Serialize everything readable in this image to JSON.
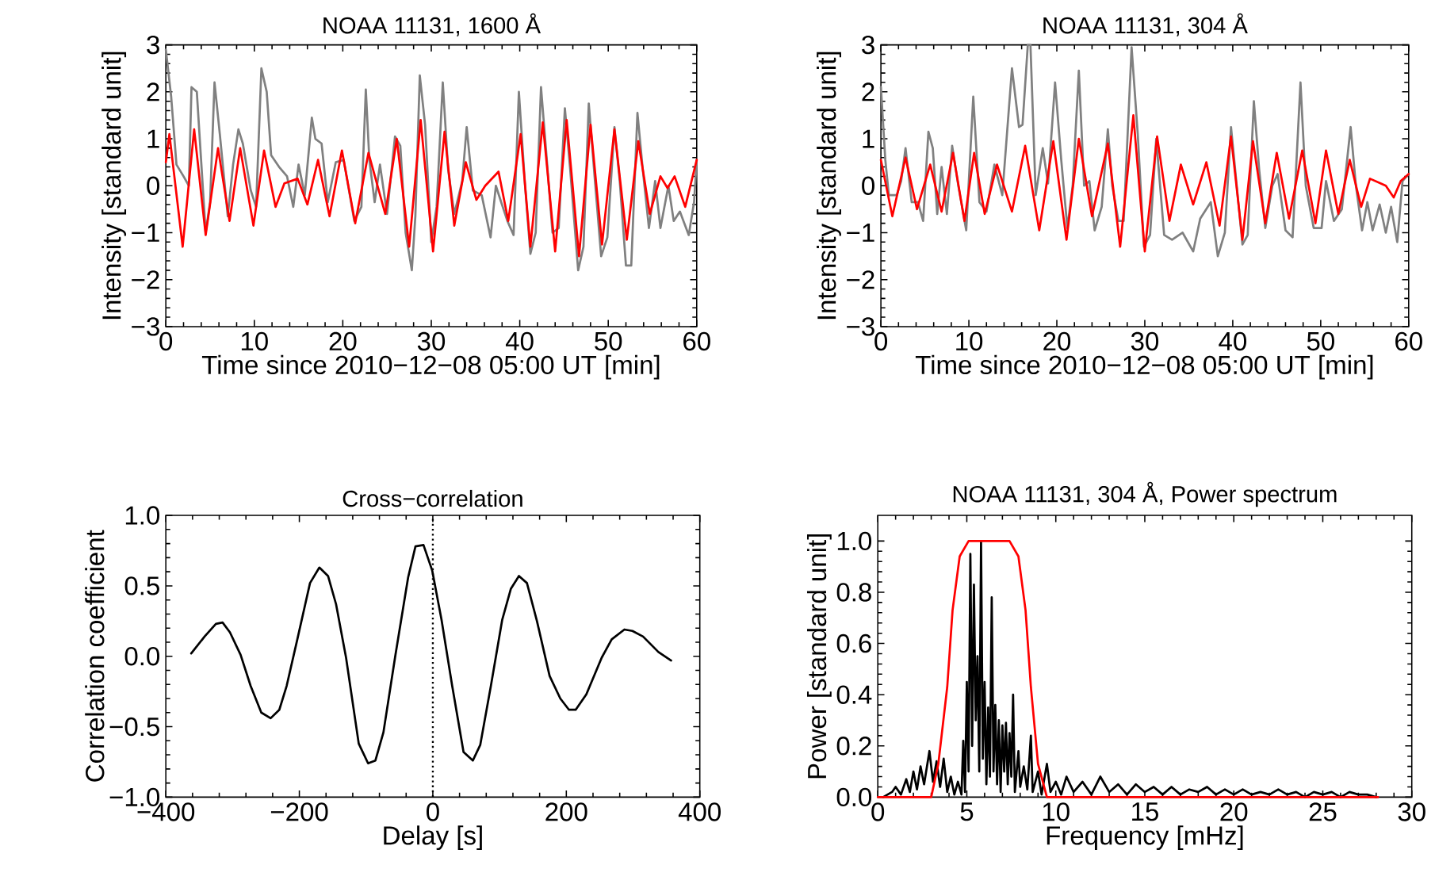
{
  "chart_data": [
    {
      "type": "line",
      "title": "NOAA 11131, 1600 Å",
      "xlabel": "Time since 2010−12−08 05:00 UT [min]",
      "ylabel": "Intensity [standard unit]",
      "xlim": [
        0,
        60
      ],
      "ylim": [
        -3,
        3
      ],
      "xticks": [
        0,
        10,
        20,
        30,
        40,
        50,
        60
      ],
      "yticks": [
        {
          "value": -3,
          "label": "−3"
        },
        {
          "value": -2,
          "label": "−2"
        },
        {
          "value": -1,
          "label": "−1"
        },
        0,
        1,
        2,
        3
      ],
      "series": [
        {
          "color": "#808080",
          "x": [
            0,
            0.6,
            1.2,
            2.0,
            2.6,
            2.9,
            3.5,
            4.1,
            4.5,
            5.0,
            5.5,
            6.1,
            7.0,
            7.6,
            8.2,
            8.7,
            9.6,
            10.2,
            10.8,
            11.4,
            11.9,
            12.8,
            13.7,
            14.4,
            15.0,
            15.7,
            16.5,
            16.9,
            17.6,
            18.3,
            19.2,
            20.1,
            21.3,
            22.1,
            22.6,
            23.0,
            23.6,
            24.2,
            25.0,
            25.9,
            26.5,
            27.1,
            27.8,
            28.2,
            28.7,
            29.3,
            30.0,
            30.6,
            31.3,
            31.9,
            32.6,
            33.5,
            34.0,
            34.7,
            35.7,
            36.7,
            37.3,
            37.9,
            38.6,
            39.3,
            39.9,
            40.6,
            41.2,
            41.8,
            42.4,
            43.1,
            43.7,
            44.4,
            45.1,
            45.7,
            46.6,
            47.2,
            47.8,
            48.5,
            49.2,
            49.9,
            50.7,
            51.3,
            52.0,
            52.6,
            53.3,
            53.9,
            54.6,
            55.3,
            55.9,
            56.8,
            57.4,
            58.1,
            58.5,
            59.1,
            59.7,
            60
          ],
          "values": [
            2.9,
            1.9,
            0.45,
            0.2,
            0,
            2.1,
            2.0,
            0.2,
            -1.0,
            -0.35,
            2.2,
            1.1,
            -0.65,
            0.45,
            1.2,
            0.9,
            -0.1,
            -0.45,
            2.5,
            2.0,
            0.65,
            0.4,
            0.2,
            -0.45,
            0.45,
            -0.2,
            1.45,
            1.0,
            0.9,
            -0.35,
            0.5,
            0.55,
            -0.75,
            -0.45,
            2.05,
            0.55,
            -0.35,
            0.45,
            -0.6,
            1.05,
            0.85,
            -1.0,
            -1.8,
            -0.65,
            2.35,
            1.3,
            -1.2,
            -0.45,
            2.2,
            0.35,
            -0.6,
            0.1,
            1.25,
            -0.1,
            -0.2,
            -1.1,
            0,
            -0.35,
            -0.75,
            -1.05,
            2.0,
            0,
            -1.45,
            -1.0,
            2.1,
            0.45,
            -1.0,
            -0.9,
            1.65,
            0.35,
            -1.8,
            -1.3,
            1.75,
            0.1,
            -1.5,
            -1.1,
            1.25,
            0.1,
            -1.7,
            -1.7,
            1.55,
            0.35,
            -0.9,
            0.1,
            -0.9,
            0,
            -0.75,
            -0.55,
            -0.75,
            -1.05,
            -0.35,
            0.55
          ]
        },
        {
          "color": "#ff0000",
          "x": [
            0,
            0.4,
            1.9,
            3.2,
            4.5,
            5.9,
            7.2,
            8.4,
            9.9,
            11.1,
            12.4,
            13.4,
            14.9,
            16.0,
            17.2,
            18.5,
            19.9,
            21.4,
            22.9,
            24.8,
            26.1,
            27.5,
            28.8,
            30.2,
            31.5,
            32.6,
            33.9,
            35.1,
            36.1,
            37.6,
            38.7,
            40.1,
            41.2,
            42.6,
            44.0,
            45.3,
            46.7,
            48.0,
            49.3,
            50.7,
            52.1,
            53.4,
            54.7,
            55.9,
            56.7,
            57.5,
            58.7,
            60
          ],
          "values": [
            0.5,
            1.1,
            -1.3,
            1.2,
            -1.05,
            0.8,
            -0.75,
            0.8,
            -0.85,
            0.75,
            -0.45,
            0.05,
            0.15,
            -0.4,
            0.55,
            -0.65,
            0.75,
            -0.8,
            0.7,
            -0.6,
            1.0,
            -1.3,
            1.4,
            -1.4,
            1.15,
            -0.85,
            0.5,
            -0.3,
            0.0,
            0.3,
            -0.75,
            1.1,
            -1.3,
            1.35,
            -1.4,
            1.4,
            -1.5,
            1.3,
            -1.25,
            1.2,
            -1.15,
            0.95,
            -0.6,
            0.2,
            -0.05,
            0.2,
            -0.45,
            0.55
          ]
        }
      ]
    },
    {
      "type": "line",
      "title": "NOAA 11131, 304 Å",
      "xlabel": "Time since 2010−12−08 05:00 UT [min]",
      "ylabel": "Intensity [standard unit]",
      "xlim": [
        0,
        60
      ],
      "ylim": [
        -3,
        3
      ],
      "xticks": [
        0,
        10,
        20,
        30,
        40,
        50,
        60
      ],
      "yticks": [
        {
          "value": -3,
          "label": "−3"
        },
        {
          "value": -2,
          "label": "−2"
        },
        {
          "value": -1,
          "label": "−1"
        },
        0,
        1,
        2,
        3
      ],
      "series": [
        {
          "color": "#808080",
          "x": [
            0,
            0.5,
            0.9,
            1.8,
            2.3,
            2.8,
            3.5,
            4.2,
            4.8,
            5.4,
            5.9,
            6.4,
            6.9,
            7.5,
            8.1,
            8.8,
            9.7,
            10.5,
            11.2,
            12.0,
            12.9,
            13.8,
            14.9,
            15.7,
            16.1,
            16.7,
            17.0,
            17.6,
            18.4,
            19.0,
            19.8,
            20.5,
            21.2,
            21.8,
            22.5,
            23.1,
            23.7,
            24.3,
            25.1,
            25.8,
            26.3,
            27.0,
            27.6,
            28.5,
            29.2,
            29.9,
            30.6,
            31.3,
            32.2,
            33.1,
            34.3,
            35.5,
            36.3,
            37.5,
            38.3,
            39.1,
            39.8,
            40.4,
            41.1,
            41.7,
            42.4,
            43.0,
            43.7,
            44.5,
            45.1,
            46.0,
            46.8,
            47.7,
            48.3,
            49.2,
            50.1,
            50.6,
            51.5,
            52.4,
            53.4,
            54.0,
            54.7,
            55.3,
            55.9,
            56.7,
            57.4,
            58.0,
            58.7,
            59.3,
            60
          ],
          "values": [
            2.1,
            0.55,
            -0.2,
            -0.2,
            0.1,
            0.8,
            -0.35,
            -0.35,
            -0.75,
            1.15,
            0.8,
            -0.6,
            0.4,
            -0.6,
            0.85,
            0,
            -0.95,
            1.9,
            -0.35,
            -0.55,
            0.45,
            -0.2,
            2.5,
            1.25,
            1.3,
            3.0,
            3.0,
            -0.2,
            0.8,
            0.05,
            2.2,
            0.55,
            -0.9,
            0,
            2.45,
            0,
            0.1,
            -0.95,
            -0.45,
            1.2,
            0,
            -0.75,
            -0.75,
            2.95,
            1.1,
            -1.3,
            -1.05,
            1.0,
            -1.05,
            -1.15,
            -1.0,
            -1.4,
            -0.7,
            -0.35,
            -1.5,
            -1.0,
            1.25,
            0.1,
            -1.25,
            -1.05,
            1.8,
            0.35,
            -0.9,
            0,
            0.25,
            -0.95,
            -1.1,
            2.2,
            0,
            -0.9,
            -0.9,
            0.1,
            -0.75,
            -0.5,
            1.25,
            0,
            -0.95,
            -0.35,
            -0.95,
            -0.4,
            -1.0,
            -0.45,
            -1.2,
            0.1,
            0.25
          ]
        },
        {
          "color": "#ff0000",
          "x": [
            0,
            1.3,
            2.8,
            4.1,
            5.6,
            6.9,
            8.2,
            9.5,
            10.6,
            11.8,
            13.2,
            14.9,
            16.4,
            18.0,
            19.6,
            21.1,
            22.5,
            24.0,
            25.8,
            27.2,
            28.7,
            30.0,
            31.4,
            32.8,
            34.1,
            35.5,
            37.0,
            38.5,
            39.8,
            41.1,
            42.3,
            43.7,
            45.0,
            46.4,
            47.9,
            49.4,
            50.6,
            52.0,
            53.3,
            54.6,
            55.6,
            56.8,
            57.4,
            58.3,
            59.1,
            60
          ],
          "values": [
            0.55,
            -0.65,
            0.6,
            -0.5,
            0.45,
            -0.55,
            0.7,
            -0.75,
            0.7,
            -0.6,
            0.45,
            -0.55,
            0.85,
            -0.95,
            0.95,
            -1.15,
            1.0,
            -0.65,
            0.9,
            -1.3,
            1.5,
            -1.4,
            1.05,
            -0.75,
            0.45,
            -0.4,
            0.5,
            -0.85,
            1.05,
            -1.15,
            0.95,
            -0.8,
            0.7,
            -0.7,
            0.75,
            -0.8,
            0.75,
            -0.6,
            0.55,
            -0.45,
            0.15,
            0.05,
            0.0,
            -0.25,
            0.1,
            0.25
          ]
        }
      ]
    },
    {
      "type": "line",
      "title": "Cross−correlation",
      "xlabel": "Delay [s]",
      "ylabel": "Correlation coefficient",
      "xlim": [
        -400,
        400
      ],
      "ylim": [
        -1,
        1
      ],
      "xticks": [
        {
          "value": -400,
          "label": "−400"
        },
        {
          "value": -200,
          "label": "−200"
        },
        0,
        200,
        400
      ],
      "yticks": [
        {
          "value": -1,
          "label": "−1.0"
        },
        {
          "value": -0.5,
          "label": "−0.5"
        },
        {
          "value": 0,
          "label": "0.0"
        },
        0.5,
        {
          "value": 1,
          "label": "1.0"
        }
      ],
      "ref_lines": [
        {
          "axis": "x",
          "value": 0,
          "line_style": "dotted",
          "color": "#000000"
        }
      ],
      "series": [
        {
          "color": "#000000",
          "x": [
            -362,
            -342,
            -325,
            -315,
            -304,
            -288,
            -273,
            -257,
            -243,
            -230,
            -219,
            -203,
            -184,
            -170,
            -157,
            -145,
            -130,
            -111,
            -97,
            -86,
            -74,
            -56,
            -37,
            -26,
            -14,
            -1,
            13,
            29,
            46,
            60,
            71,
            87,
            104,
            117,
            129,
            141,
            156,
            175,
            191,
            204,
            214,
            230,
            253,
            268,
            287,
            299,
            315,
            338,
            357
          ],
          "values": [
            0.02,
            0.14,
            0.23,
            0.24,
            0.17,
            0.01,
            -0.21,
            -0.4,
            -0.44,
            -0.38,
            -0.21,
            0.12,
            0.52,
            0.63,
            0.57,
            0.37,
            -0.01,
            -0.62,
            -0.76,
            -0.74,
            -0.54,
            0.01,
            0.56,
            0.78,
            0.79,
            0.61,
            0.26,
            -0.21,
            -0.68,
            -0.74,
            -0.63,
            -0.21,
            0.26,
            0.48,
            0.57,
            0.52,
            0.25,
            -0.14,
            -0.3,
            -0.38,
            -0.38,
            -0.27,
            -0.01,
            0.12,
            0.19,
            0.18,
            0.14,
            0.03,
            -0.03
          ]
        }
      ]
    },
    {
      "type": "line",
      "title": "NOAA 11131, 304 Å, Power spectrum",
      "xlabel": "Frequency [mHz]",
      "ylabel": "Power [standard unit]",
      "xlim": [
        0,
        30
      ],
      "ylim": [
        0,
        1.1
      ],
      "xticks": [
        0,
        5,
        10,
        15,
        20,
        25,
        30
      ],
      "yticks": [
        {
          "value": 0,
          "label": "0.0"
        },
        0.2,
        0.4,
        0.6,
        0.8,
        {
          "value": 1,
          "label": "1.0"
        }
      ],
      "series": [
        {
          "color": "#000000",
          "x": [
            0.3,
            0.8,
            1.0,
            1.3,
            1.6,
            1.8,
            2.0,
            2.2,
            2.4,
            2.6,
            2.9,
            3.1,
            3.3,
            3.5,
            3.7,
            3.9,
            4.1,
            4.3,
            4.5,
            4.7,
            4.8,
            4.9,
            5.0,
            5.1,
            5.2,
            5.3,
            5.4,
            5.5,
            5.6,
            5.7,
            5.8,
            5.9,
            6.0,
            6.1,
            6.2,
            6.3,
            6.4,
            6.5,
            6.6,
            6.7,
            6.8,
            6.9,
            7.0,
            7.1,
            7.2,
            7.3,
            7.4,
            7.5,
            7.6,
            7.7,
            7.9,
            8.0,
            8.2,
            8.4,
            8.6,
            8.7,
            9.0,
            9.2,
            9.5,
            9.7,
            10.0,
            10.3,
            10.6,
            11.0,
            11.5,
            12.0,
            12.5,
            13.0,
            13.5,
            14.0,
            14.5,
            15.0,
            15.5,
            16.0,
            16.5,
            17.0,
            17.5,
            18.0,
            18.5,
            19.0,
            19.5,
            20.0,
            20.5,
            21.0,
            21.5,
            22.0,
            22.5,
            23.0,
            23.5,
            24.0,
            24.5,
            25.0,
            25.5,
            26.0,
            26.5,
            27.0,
            27.5,
            28.0
          ],
          "values": [
            0.0,
            0.02,
            0.04,
            0.01,
            0.07,
            0.02,
            0.1,
            0.03,
            0.12,
            0.05,
            0.18,
            0.06,
            0.14,
            0.04,
            0.15,
            0.02,
            0.08,
            0.01,
            0.06,
            0.01,
            0.22,
            0.02,
            0.45,
            0.1,
            0.95,
            0.2,
            0.83,
            0.3,
            0.55,
            0.1,
            1.0,
            0.15,
            0.45,
            0.05,
            0.35,
            0.08,
            0.78,
            0.1,
            0.36,
            0.05,
            0.3,
            0.02,
            0.28,
            0.1,
            0.29,
            0.05,
            0.25,
            0.08,
            0.4,
            0.02,
            0.18,
            0.04,
            0.12,
            0.03,
            0.24,
            0.02,
            0.1,
            0.01,
            0.13,
            0.02,
            0.06,
            0.01,
            0.08,
            0.02,
            0.06,
            0.01,
            0.08,
            0.02,
            0.05,
            0.01,
            0.05,
            0.02,
            0.04,
            0.01,
            0.04,
            0.01,
            0.03,
            0.02,
            0.04,
            0.01,
            0.03,
            0.01,
            0.03,
            0.01,
            0.02,
            0.01,
            0.03,
            0.01,
            0.02,
            0.0,
            0.02,
            0.01,
            0.02,
            0.0,
            0.02,
            0.01,
            0.01,
            0.0
          ]
        },
        {
          "color": "#ff0000",
          "x": [
            0,
            3.0,
            3.4,
            3.9,
            4.2,
            4.6,
            5.1,
            7.4,
            7.9,
            8.3,
            8.6,
            9.0,
            9.5,
            28.1
          ],
          "values": [
            0,
            0,
            0.13,
            0.43,
            0.73,
            0.94,
            1.0,
            1.0,
            0.94,
            0.73,
            0.43,
            0.13,
            0,
            0
          ]
        }
      ]
    }
  ]
}
